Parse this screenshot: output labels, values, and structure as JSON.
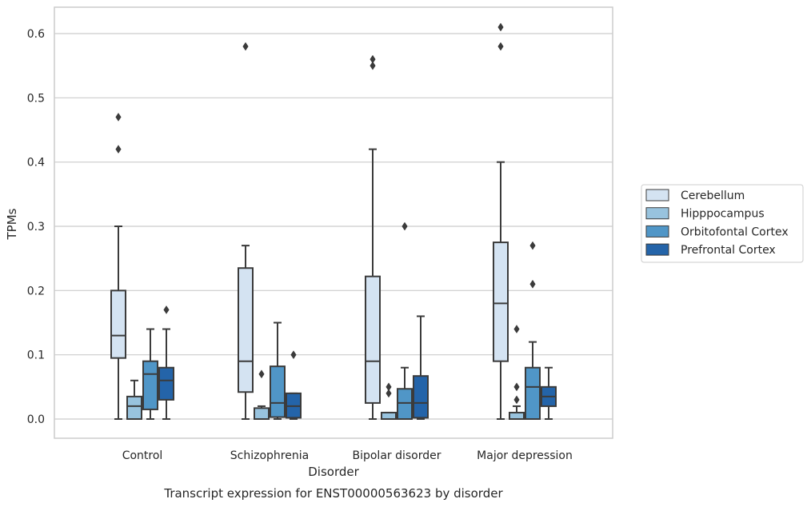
{
  "chart_data": {
    "type": "box",
    "xlabel": "Disorder",
    "ylabel": "TPMs",
    "caption": "Transcript expression for ENST00000563623 by disorder",
    "ylim": [
      -0.03,
      0.64
    ],
    "yticks": [
      "0.0",
      "0.1",
      "0.2",
      "0.3",
      "0.4",
      "0.5",
      "0.6"
    ],
    "grid": "horizontal",
    "legend_position": "right",
    "categories": [
      "Control",
      "Schizophrenia",
      "Bipolar disorder",
      "Major depression"
    ],
    "series": [
      {
        "name": "Cerebellum",
        "color": "#d4e3f2",
        "boxes": [
          {
            "min": 0.0,
            "q1": 0.095,
            "median": 0.13,
            "q3": 0.2,
            "max": 0.3,
            "outliers": [
              0.47,
              0.42
            ]
          },
          {
            "min": 0.0,
            "q1": 0.042,
            "median": 0.09,
            "q3": 0.235,
            "max": 0.27,
            "outliers": [
              0.58
            ]
          },
          {
            "min": 0.0,
            "q1": 0.025,
            "median": 0.09,
            "q3": 0.222,
            "max": 0.42,
            "outliers": [
              0.56,
              0.55
            ]
          },
          {
            "min": 0.0,
            "q1": 0.09,
            "median": 0.18,
            "q3": 0.275,
            "max": 0.4,
            "outliers": [
              0.61,
              0.58
            ]
          }
        ]
      },
      {
        "name": "Hipppocampus",
        "color": "#98c3de",
        "boxes": [
          {
            "min": 0.0,
            "q1": 0.0,
            "median": 0.02,
            "q3": 0.035,
            "max": 0.06,
            "outliers": []
          },
          {
            "min": 0.0,
            "q1": 0.0,
            "median": 0.0,
            "q3": 0.017,
            "max": 0.02,
            "outliers": [
              0.07
            ]
          },
          {
            "min": 0.0,
            "q1": 0.0,
            "median": 0.0,
            "q3": 0.01,
            "max": 0.01,
            "outliers": [
              0.05,
              0.04
            ]
          },
          {
            "min": 0.0,
            "q1": 0.0,
            "median": 0.0,
            "q3": 0.01,
            "max": 0.02,
            "outliers": [
              0.14,
              0.05,
              0.03
            ]
          }
        ]
      },
      {
        "name": "Orbitofontal Cortex",
        "color": "#5096c7",
        "boxes": [
          {
            "min": 0.0,
            "q1": 0.015,
            "median": 0.07,
            "q3": 0.09,
            "max": 0.14,
            "outliers": []
          },
          {
            "min": 0.0,
            "q1": 0.003,
            "median": 0.025,
            "q3": 0.082,
            "max": 0.15,
            "outliers": []
          },
          {
            "min": 0.0,
            "q1": 0.0,
            "median": 0.025,
            "q3": 0.047,
            "max": 0.08,
            "outliers": [
              0.3
            ]
          },
          {
            "min": 0.0,
            "q1": 0.0,
            "median": 0.05,
            "q3": 0.08,
            "max": 0.12,
            "outliers": [
              0.27,
              0.21
            ]
          }
        ]
      },
      {
        "name": "Prefrontal Cortex",
        "color": "#2464a9",
        "boxes": [
          {
            "min": 0.0,
            "q1": 0.03,
            "median": 0.06,
            "q3": 0.08,
            "max": 0.14,
            "outliers": [
              0.17
            ]
          },
          {
            "min": 0.0,
            "q1": 0.002,
            "median": 0.02,
            "q3": 0.04,
            "max": 0.04,
            "outliers": [
              0.1
            ]
          },
          {
            "min": 0.0,
            "q1": 0.002,
            "median": 0.025,
            "q3": 0.067,
            "max": 0.16,
            "outliers": []
          },
          {
            "min": 0.0,
            "q1": 0.02,
            "median": 0.035,
            "q3": 0.05,
            "max": 0.08,
            "outliers": []
          }
        ]
      }
    ]
  }
}
